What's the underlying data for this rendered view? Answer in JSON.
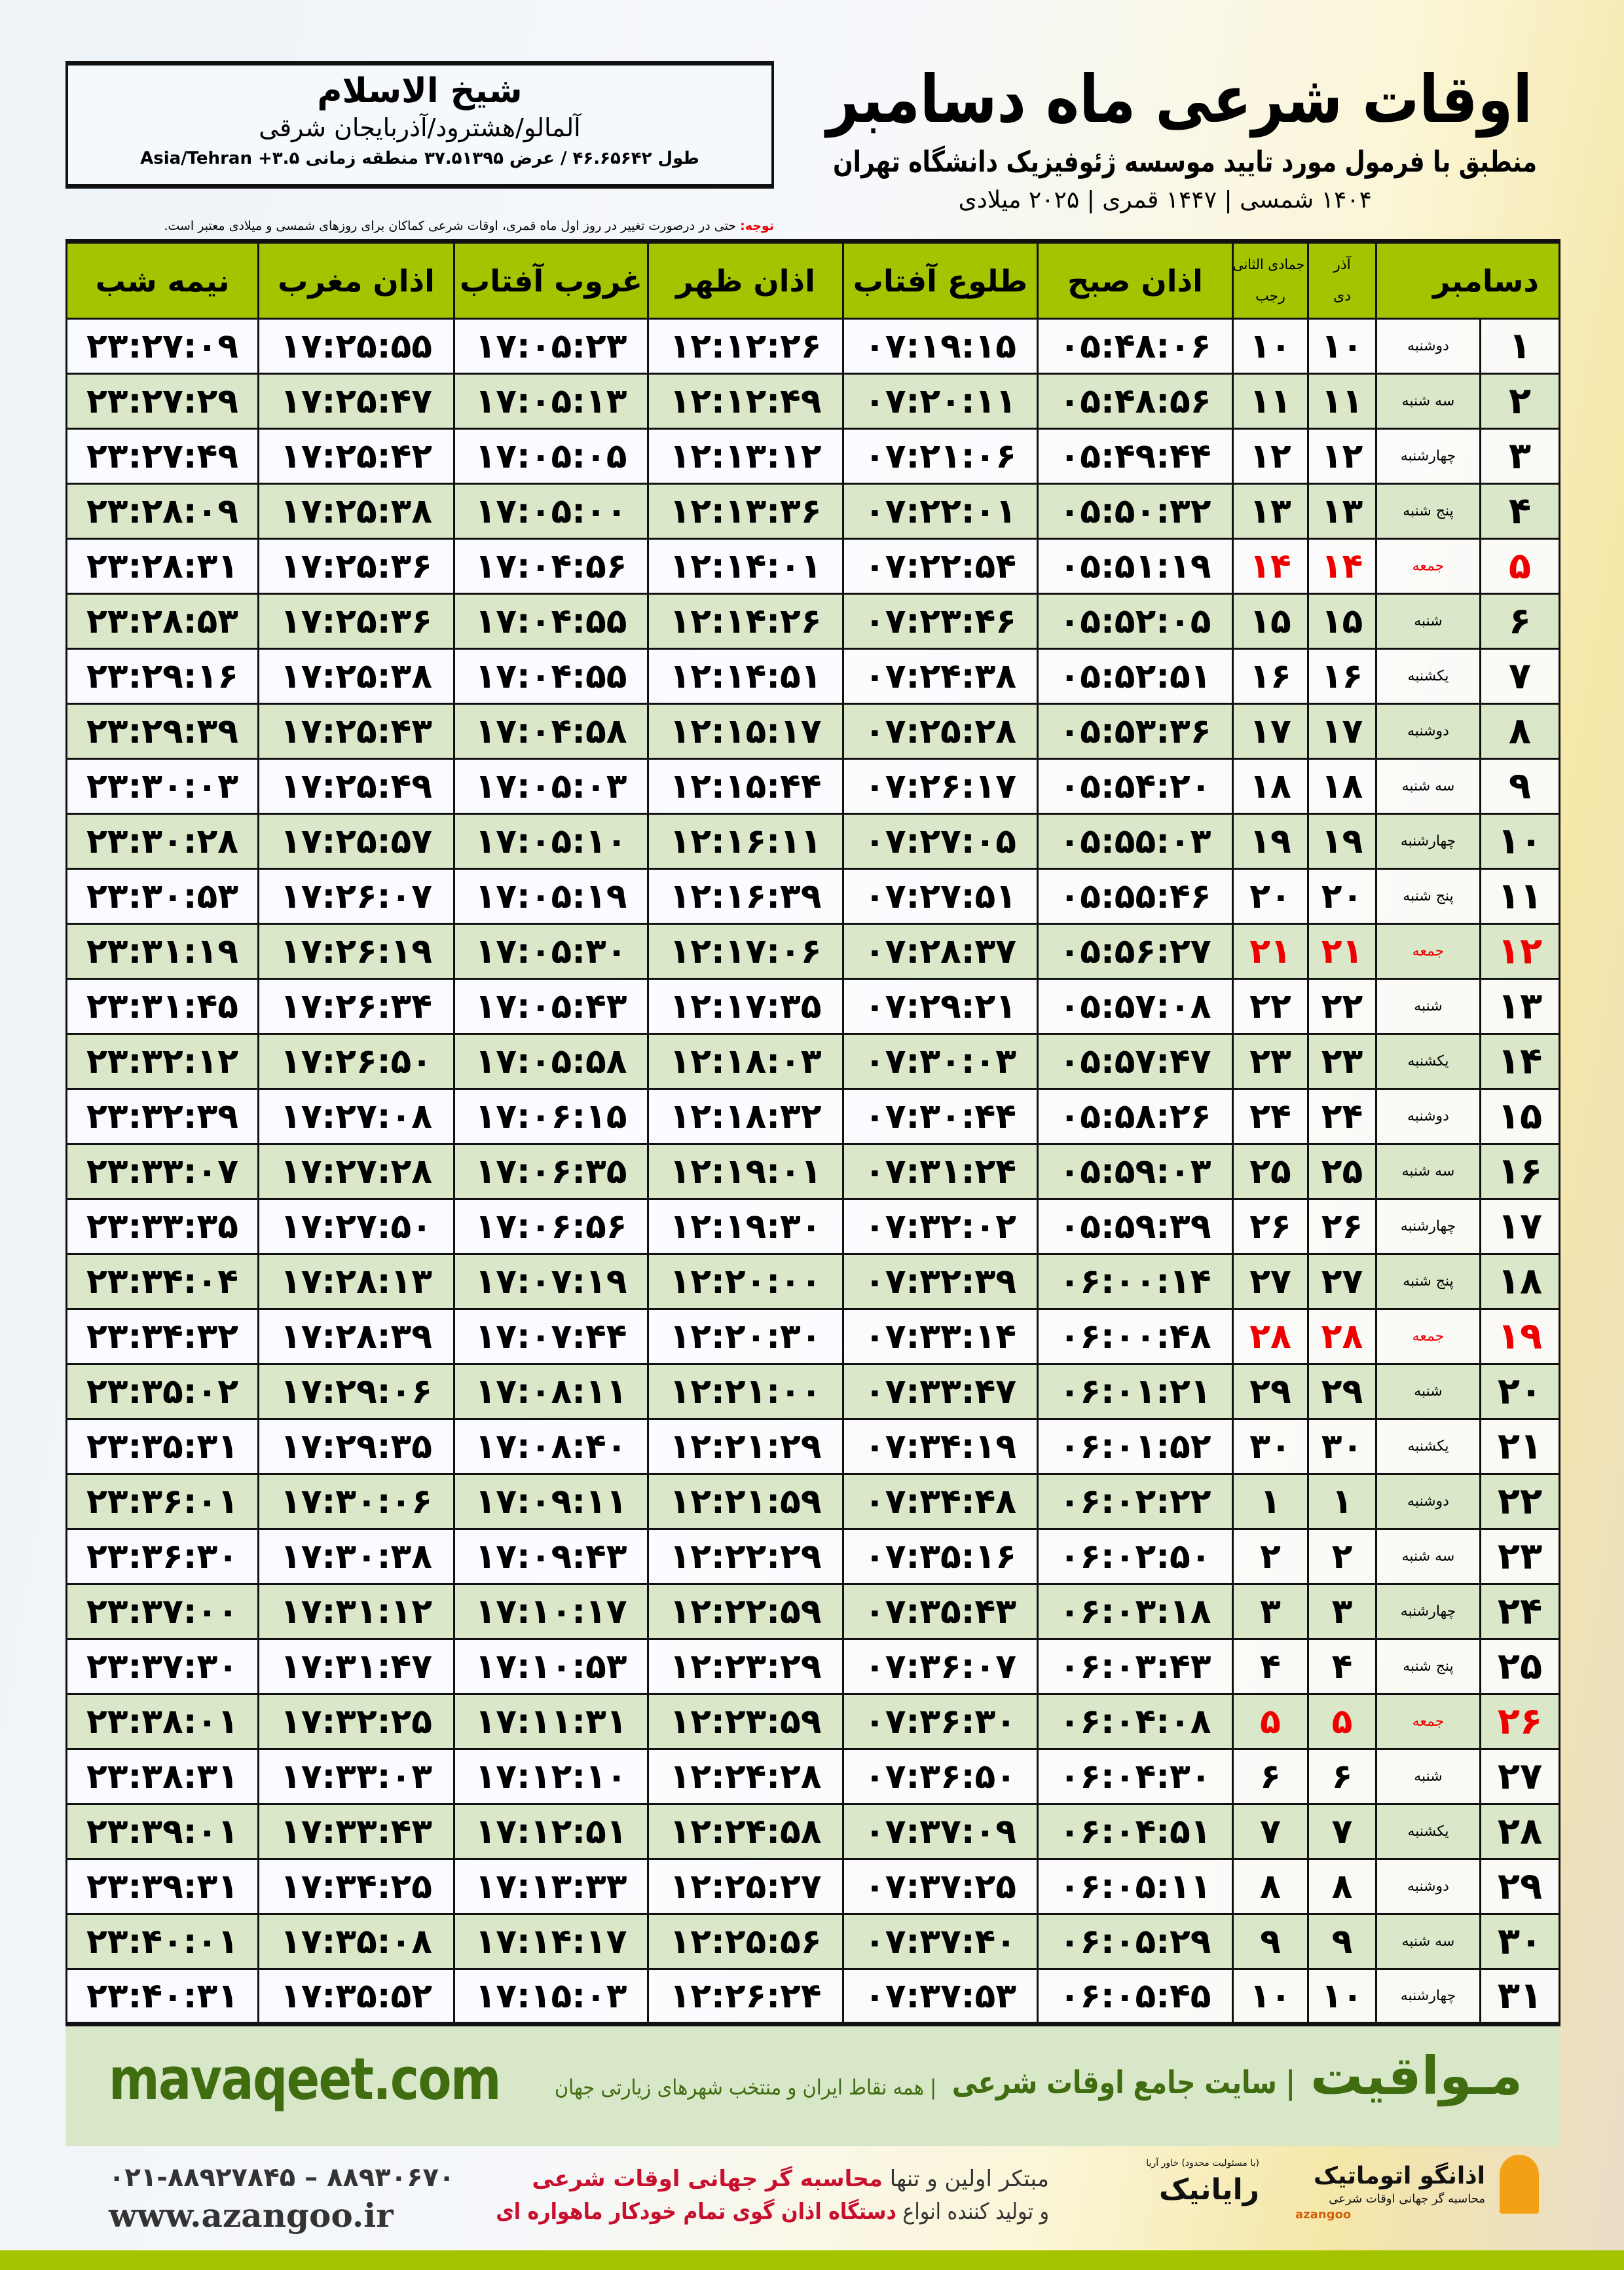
{
  "header": {
    "title": "اوقات شرعی ماه دسامبر",
    "subtitle": "منطبق با فرمول مورد تایید موسسه ژئوفیزیک دانشگاه تهران",
    "years": "۱۴۰۴ شمسی | ۱۴۴۷ قمری | ۲۰۲۵ میلادی"
  },
  "location": {
    "city": "شیخ الاسلام",
    "province": "آلمالو/هشترود/آذربایجان شرقی",
    "coords": "طول ۴۶.۶۵۶۴۲ / عرض ۳۷.۵۱۳۹۵ منطقه زمانی ۳.۵+ Asia/Tehran"
  },
  "note": {
    "label": "توجه:",
    "text": " حتی در درصورت تغییر در روز اول ماه قمری، اوقات شرعی کماکان برای روزهای شمسی و میلادی معتبر است."
  },
  "table": {
    "columns": [
      "نیمه شب",
      "اذان مغرب",
      "غروب آفتاب",
      "اذان ظهر",
      "طلوع آفتاب",
      "اذان صبح",
      "جمادی الثانی",
      "رجب",
      "آذر",
      "دی",
      "دسامبر"
    ],
    "accent_color": "#a5c400",
    "friday_color": "#e00000",
    "rows": [
      [
        "۱",
        "دوشنبه",
        "۱۰",
        "۱۰",
        "۰۵:۴۸:۰۶",
        "۰۷:۱۹:۱۵",
        "۱۲:۱۲:۲۶",
        "۱۷:۰۵:۲۳",
        "۱۷:۲۵:۵۵",
        "۲۳:۲۷:۰۹"
      ],
      [
        "۲",
        "سه شنبه",
        "۱۱",
        "۱۱",
        "۰۵:۴۸:۵۶",
        "۰۷:۲۰:۱۱",
        "۱۲:۱۲:۴۹",
        "۱۷:۰۵:۱۳",
        "۱۷:۲۵:۴۷",
        "۲۳:۲۷:۲۹"
      ],
      [
        "۳",
        "چهارشنبه",
        "۱۲",
        "۱۲",
        "۰۵:۴۹:۴۴",
        "۰۷:۲۱:۰۶",
        "۱۲:۱۳:۱۲",
        "۱۷:۰۵:۰۵",
        "۱۷:۲۵:۴۲",
        "۲۳:۲۷:۴۹"
      ],
      [
        "۴",
        "پنج شنبه",
        "۱۳",
        "۱۳",
        "۰۵:۵۰:۳۲",
        "۰۷:۲۲:۰۱",
        "۱۲:۱۳:۳۶",
        "۱۷:۰۵:۰۰",
        "۱۷:۲۵:۳۸",
        "۲۳:۲۸:۰۹"
      ],
      [
        "۵",
        "جمعه",
        "۱۴",
        "۱۴",
        "۰۵:۵۱:۱۹",
        "۰۷:۲۲:۵۴",
        "۱۲:۱۴:۰۱",
        "۱۷:۰۴:۵۶",
        "۱۷:۲۵:۳۶",
        "۲۳:۲۸:۳۱"
      ],
      [
        "۶",
        "شنبه",
        "۱۵",
        "۱۵",
        "۰۵:۵۲:۰۵",
        "۰۷:۲۳:۴۶",
        "۱۲:۱۴:۲۶",
        "۱۷:۰۴:۵۵",
        "۱۷:۲۵:۳۶",
        "۲۳:۲۸:۵۳"
      ],
      [
        "۷",
        "یکشنبه",
        "۱۶",
        "۱۶",
        "۰۵:۵۲:۵۱",
        "۰۷:۲۴:۳۸",
        "۱۲:۱۴:۵۱",
        "۱۷:۰۴:۵۵",
        "۱۷:۲۵:۳۸",
        "۲۳:۲۹:۱۶"
      ],
      [
        "۸",
        "دوشنبه",
        "۱۷",
        "۱۷",
        "۰۵:۵۳:۳۶",
        "۰۷:۲۵:۲۸",
        "۱۲:۱۵:۱۷",
        "۱۷:۰۴:۵۸",
        "۱۷:۲۵:۴۳",
        "۲۳:۲۹:۳۹"
      ],
      [
        "۹",
        "سه شنبه",
        "۱۸",
        "۱۸",
        "۰۵:۵۴:۲۰",
        "۰۷:۲۶:۱۷",
        "۱۲:۱۵:۴۴",
        "۱۷:۰۵:۰۳",
        "۱۷:۲۵:۴۹",
        "۲۳:۳۰:۰۳"
      ],
      [
        "۱۰",
        "چهارشنبه",
        "۱۹",
        "۱۹",
        "۰۵:۵۵:۰۳",
        "۰۷:۲۷:۰۵",
        "۱۲:۱۶:۱۱",
        "۱۷:۰۵:۱۰",
        "۱۷:۲۵:۵۷",
        "۲۳:۳۰:۲۸"
      ],
      [
        "۱۱",
        "پنج شنبه",
        "۲۰",
        "۲۰",
        "۰۵:۵۵:۴۶",
        "۰۷:۲۷:۵۱",
        "۱۲:۱۶:۳۹",
        "۱۷:۰۵:۱۹",
        "۱۷:۲۶:۰۷",
        "۲۳:۳۰:۵۳"
      ],
      [
        "۱۲",
        "جمعه",
        "۲۱",
        "۲۱",
        "۰۵:۵۶:۲۷",
        "۰۷:۲۸:۳۷",
        "۱۲:۱۷:۰۶",
        "۱۷:۰۵:۳۰",
        "۱۷:۲۶:۱۹",
        "۲۳:۳۱:۱۹"
      ],
      [
        "۱۳",
        "شنبه",
        "۲۲",
        "۲۲",
        "۰۵:۵۷:۰۸",
        "۰۷:۲۹:۲۱",
        "۱۲:۱۷:۳۵",
        "۱۷:۰۵:۴۳",
        "۱۷:۲۶:۳۴",
        "۲۳:۳۱:۴۵"
      ],
      [
        "۱۴",
        "یکشنبه",
        "۲۳",
        "۲۳",
        "۰۵:۵۷:۴۷",
        "۰۷:۳۰:۰۳",
        "۱۲:۱۸:۰۳",
        "۱۷:۰۵:۵۸",
        "۱۷:۲۶:۵۰",
        "۲۳:۳۲:۱۲"
      ],
      [
        "۱۵",
        "دوشنبه",
        "۲۴",
        "۲۴",
        "۰۵:۵۸:۲۶",
        "۰۷:۳۰:۴۴",
        "۱۲:۱۸:۳۲",
        "۱۷:۰۶:۱۵",
        "۱۷:۲۷:۰۸",
        "۲۳:۳۲:۳۹"
      ],
      [
        "۱۶",
        "سه شنبه",
        "۲۵",
        "۲۵",
        "۰۵:۵۹:۰۳",
        "۰۷:۳۱:۲۴",
        "۱۲:۱۹:۰۱",
        "۱۷:۰۶:۳۵",
        "۱۷:۲۷:۲۸",
        "۲۳:۳۳:۰۷"
      ],
      [
        "۱۷",
        "چهارشنبه",
        "۲۶",
        "۲۶",
        "۰۵:۵۹:۳۹",
        "۰۷:۳۲:۰۲",
        "۱۲:۱۹:۳۰",
        "۱۷:۰۶:۵۶",
        "۱۷:۲۷:۵۰",
        "۲۳:۳۳:۳۵"
      ],
      [
        "۱۸",
        "پنج شنبه",
        "۲۷",
        "۲۷",
        "۰۶:۰۰:۱۴",
        "۰۷:۳۲:۳۹",
        "۱۲:۲۰:۰۰",
        "۱۷:۰۷:۱۹",
        "۱۷:۲۸:۱۳",
        "۲۳:۳۴:۰۴"
      ],
      [
        "۱۹",
        "جمعه",
        "۲۸",
        "۲۸",
        "۰۶:۰۰:۴۸",
        "۰۷:۳۳:۱۴",
        "۱۲:۲۰:۳۰",
        "۱۷:۰۷:۴۴",
        "۱۷:۲۸:۳۹",
        "۲۳:۳۴:۳۲"
      ],
      [
        "۲۰",
        "شنبه",
        "۲۹",
        "۲۹",
        "۰۶:۰۱:۲۱",
        "۰۷:۳۳:۴۷",
        "۱۲:۲۱:۰۰",
        "۱۷:۰۸:۱۱",
        "۱۷:۲۹:۰۶",
        "۲۳:۳۵:۰۲"
      ],
      [
        "۲۱",
        "یکشنبه",
        "۳۰",
        "۳۰",
        "۰۶:۰۱:۵۲",
        "۰۷:۳۴:۱۹",
        "۱۲:۲۱:۲۹",
        "۱۷:۰۸:۴۰",
        "۱۷:۲۹:۳۵",
        "۲۳:۳۵:۳۱"
      ],
      [
        "۲۲",
        "دوشنبه",
        "۱",
        "۱",
        "۰۶:۰۲:۲۲",
        "۰۷:۳۴:۴۸",
        "۱۲:۲۱:۵۹",
        "۱۷:۰۹:۱۱",
        "۱۷:۳۰:۰۶",
        "۲۳:۳۶:۰۱"
      ],
      [
        "۲۳",
        "سه شنبه",
        "۲",
        "۲",
        "۰۶:۰۲:۵۰",
        "۰۷:۳۵:۱۶",
        "۱۲:۲۲:۲۹",
        "۱۷:۰۹:۴۳",
        "۱۷:۳۰:۳۸",
        "۲۳:۳۶:۳۰"
      ],
      [
        "۲۴",
        "چهارشنبه",
        "۳",
        "۳",
        "۰۶:۰۳:۱۸",
        "۰۷:۳۵:۴۳",
        "۱۲:۲۲:۵۹",
        "۱۷:۱۰:۱۷",
        "۱۷:۳۱:۱۲",
        "۲۳:۳۷:۰۰"
      ],
      [
        "۲۵",
        "پنج شنبه",
        "۴",
        "۴",
        "۰۶:۰۳:۴۳",
        "۰۷:۳۶:۰۷",
        "۱۲:۲۳:۲۹",
        "۱۷:۱۰:۵۳",
        "۱۷:۳۱:۴۷",
        "۲۳:۳۷:۳۰"
      ],
      [
        "۲۶",
        "جمعه",
        "۵",
        "۵",
        "۰۶:۰۴:۰۸",
        "۰۷:۳۶:۳۰",
        "۱۲:۲۳:۵۹",
        "۱۷:۱۱:۳۱",
        "۱۷:۳۲:۲۵",
        "۲۳:۳۸:۰۱"
      ],
      [
        "۲۷",
        "شنبه",
        "۶",
        "۶",
        "۰۶:۰۴:۳۰",
        "۰۷:۳۶:۵۰",
        "۱۲:۲۴:۲۸",
        "۱۷:۱۲:۱۰",
        "۱۷:۳۳:۰۳",
        "۲۳:۳۸:۳۱"
      ],
      [
        "۲۸",
        "یکشنبه",
        "۷",
        "۷",
        "۰۶:۰۴:۵۱",
        "۰۷:۳۷:۰۹",
        "۱۲:۲۴:۵۸",
        "۱۷:۱۲:۵۱",
        "۱۷:۳۳:۴۳",
        "۲۳:۳۹:۰۱"
      ],
      [
        "۲۹",
        "دوشنبه",
        "۸",
        "۸",
        "۰۶:۰۵:۱۱",
        "۰۷:۳۷:۲۵",
        "۱۲:۲۵:۲۷",
        "۱۷:۱۳:۳۳",
        "۱۷:۳۴:۲۵",
        "۲۳:۳۹:۳۱"
      ],
      [
        "۳۰",
        "سه شنبه",
        "۹",
        "۹",
        "۰۶:۰۵:۲۹",
        "۰۷:۳۷:۴۰",
        "۱۲:۲۵:۵۶",
        "۱۷:۱۴:۱۷",
        "۱۷:۳۵:۰۸",
        "۲۳:۴۰:۰۱"
      ],
      [
        "۳۱",
        "چهارشنبه",
        "۱۰",
        "۱۰",
        "۰۶:۰۵:۴۵",
        "۰۷:۳۷:۵۳",
        "۱۲:۲۶:۲۴",
        "۱۷:۱۵:۰۳",
        "۱۷:۳۵:۵۲",
        "۲۳:۴۰:۳۱"
      ]
    ]
  },
  "footer": {
    "url": "mavaqeet.com",
    "logo": "مـواقیت",
    "slogan": "| سایت جامع اوقات شرعی",
    "tagline": "| همه نقاط ایران و منتخب شهرهای زیارتی جهان",
    "phone": "۰۲۱-۸۸۹۲۷۸۴۵ – ۸۸۹۳۰۶۷۰",
    "web": "www.azangoo.ir",
    "ad_line1_a": "مبتکر اولین و تنها ",
    "ad_line1_b": "محاسبه گر جهانی اوقات شرعی",
    "ad_line2_a": "و تولید کننده انواع ",
    "ad_line2_b": "دستگاه اذان گوی تمام خودکار ماهواره ای",
    "rayanik": "رایانیک",
    "rayanik_sub": "(با مسئولیت محدود) خاور آریا",
    "azangoo": "اذانگو اتوماتیک",
    "azangoo_sub": "محاسبه گر جهانی اوقات شرعی",
    "azangoo_en": "azangoo"
  }
}
